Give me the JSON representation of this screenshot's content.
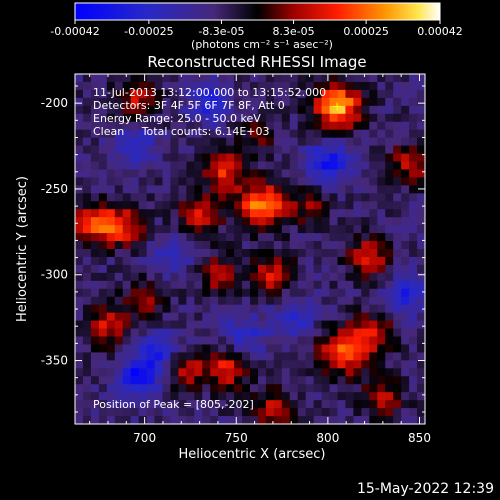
{
  "chart_data": {
    "type": "heatmap",
    "title": "Reconstructed RHESSI Image",
    "xlabel": "Heliocentric X (arcsec)",
    "ylabel": "Heliocentric Y (arcsec)",
    "xlim": [
      662,
      853
    ],
    "ylim": [
      -387,
      -183
    ],
    "x_ticks": [
      "700",
      "750",
      "800",
      "850"
    ],
    "y_ticks": [
      "-200",
      "-250",
      "-300",
      "-350"
    ],
    "colorbar": {
      "range": [
        -0.00042,
        0.00042
      ],
      "tick_labels": [
        "-0.00042",
        "-0.00025",
        "-8.3e-05",
        "8.3e-05",
        "0.00025",
        "0.00042"
      ],
      "unit_label": "(photons cm⁻² s⁻¹ asec⁻²)"
    },
    "info": [
      "11-Jul-2013 13:12:00.000 to 13:15:52.000",
      "Detectors: 3F 4F 5F 6F 7F 8F, Att 0",
      "Energy Range: 25.0 - 50.0 keV",
      "Clean     Total counts: 6.14E+03"
    ],
    "peak_label": "Position of Peak = [805,-202]",
    "peak": [
      805,
      -202
    ],
    "sources": [
      {
        "x": 805,
        "y": -202,
        "intensity": 0.00042
      },
      {
        "x": 764,
        "y": -260,
        "intensity": 0.00038
      },
      {
        "x": 672,
        "y": -270,
        "intensity": 0.0003
      },
      {
        "x": 688,
        "y": -272,
        "intensity": 0.00026
      },
      {
        "x": 744,
        "y": -240,
        "intensity": 0.00025
      },
      {
        "x": 695,
        "y": -198,
        "intensity": 0.0002
      },
      {
        "x": 730,
        "y": -265,
        "intensity": 0.00024
      },
      {
        "x": 770,
        "y": -300,
        "intensity": 0.00022
      },
      {
        "x": 740,
        "y": -300,
        "intensity": 0.00018
      },
      {
        "x": 822,
        "y": -290,
        "intensity": 0.00024
      },
      {
        "x": 808,
        "y": -345,
        "intensity": 0.00032
      },
      {
        "x": 825,
        "y": -335,
        "intensity": 0.00022
      },
      {
        "x": 745,
        "y": -355,
        "intensity": 0.00025
      },
      {
        "x": 722,
        "y": -355,
        "intensity": 0.0002
      },
      {
        "x": 680,
        "y": -330,
        "intensity": 0.00022
      },
      {
        "x": 770,
        "y": -378,
        "intensity": 0.0002
      },
      {
        "x": 845,
        "y": -235,
        "intensity": 0.0002
      },
      {
        "x": 700,
        "y": -315,
        "intensity": 0.00015
      },
      {
        "x": 790,
        "y": -260,
        "intensity": 0.00014
      },
      {
        "x": 830,
        "y": -372,
        "intensity": 0.00018
      },
      {
        "x": 760,
        "y": -220,
        "intensity": 0.00012
      }
    ],
    "minima": [
      {
        "x": 697,
        "y": -360,
        "intensity": -0.0003
      },
      {
        "x": 708,
        "y": -345,
        "intensity": -0.0002
      },
      {
        "x": 800,
        "y": -235,
        "intensity": -0.00025
      },
      {
        "x": 843,
        "y": -312,
        "intensity": -0.0002
      },
      {
        "x": 735,
        "y": -200,
        "intensity": -0.0002
      },
      {
        "x": 695,
        "y": -225,
        "intensity": -0.00018
      },
      {
        "x": 782,
        "y": -325,
        "intensity": -0.00016
      },
      {
        "x": 755,
        "y": -335,
        "intensity": -0.00016
      },
      {
        "x": 715,
        "y": -290,
        "intensity": -0.00014
      }
    ]
  },
  "footer": {
    "timestamp": "15-May-2022 12:39"
  }
}
